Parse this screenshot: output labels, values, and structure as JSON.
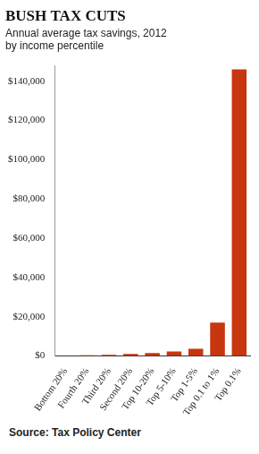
{
  "chart_data": {
    "type": "bar",
    "title": "BUSH TAX CUTS",
    "subtitle": [
      "Annual average tax savings, 2012",
      "by income percentile"
    ],
    "source": "Source: Tax Policy Center",
    "categories": [
      "Bottom 20%",
      "Fourth 20%",
      "Third 20%",
      "Second 20%",
      "Top 10-20%",
      "Top 5-10%",
      "Top 1-5%",
      "Top 0.1 to 1%",
      "Top 0.1%"
    ],
    "values": [
      30,
      300,
      600,
      1000,
      1500,
      2300,
      3700,
      17000,
      146000
    ],
    "color": "#c8360f",
    "ylim": [
      0,
      148000
    ],
    "yticks": [
      {
        "value": 0,
        "label": "$0"
      },
      {
        "value": 20000,
        "label": "$20,000"
      },
      {
        "value": 40000,
        "label": "$40,000"
      },
      {
        "value": 60000,
        "label": "$60,000"
      },
      {
        "value": 80000,
        "label": "$80,000"
      },
      {
        "value": 100000,
        "label": "$100,000"
      },
      {
        "value": 120000,
        "label": "$120,000"
      },
      {
        "value": 140000,
        "label": "$140,000"
      }
    ],
    "grid": false
  }
}
